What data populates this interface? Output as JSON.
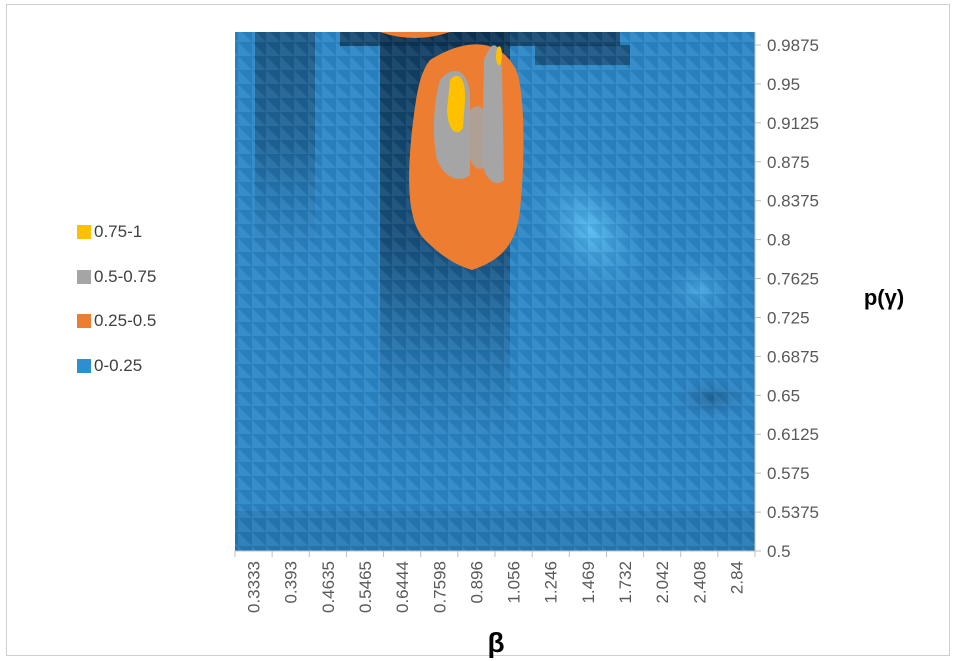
{
  "chart_data": {
    "type": "heatmap",
    "title": "",
    "xlabel": "β",
    "ylabel": "p(γ)",
    "x_ticks": [
      "0.3333",
      "0.393",
      "0.4635",
      "0.5465",
      "0.6444",
      "0.7598",
      "0.896",
      "1.056",
      "1.246",
      "1.469",
      "1.732",
      "2.042",
      "2.408",
      "2.84"
    ],
    "y_ticks": [
      "0.5",
      "0.5375",
      "0.575",
      "0.6125",
      "0.65",
      "0.6875",
      "0.725",
      "0.7625",
      "0.8",
      "0.8375",
      "0.875",
      "0.9125",
      "0.95",
      "0.9875"
    ],
    "y_range": [
      0.5,
      1.0
    ],
    "legend": [
      {
        "label": "0.75-1",
        "color": "#FFC000"
      },
      {
        "label": "0.5-0.75",
        "color": "#A5A5A5"
      },
      {
        "label": "0.25-0.5",
        "color": "#ED7D31"
      },
      {
        "label": "0-0.25",
        "color": "#2E8FD0"
      }
    ],
    "legend_position": "left",
    "grid": false
  }
}
